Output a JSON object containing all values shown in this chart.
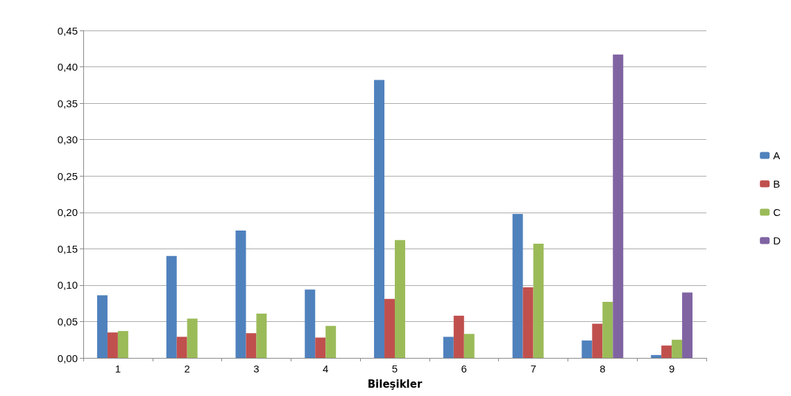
{
  "chart_data": {
    "type": "bar",
    "xlabel": "Bileşikler",
    "categories": [
      "1",
      "2",
      "3",
      "4",
      "5",
      "6",
      "7",
      "8",
      "9"
    ],
    "series": [
      {
        "name": "A",
        "color": "#4f81bd",
        "values": [
          0.086,
          0.14,
          0.175,
          0.094,
          0.382,
          0.029,
          0.198,
          0.024,
          0.004
        ]
      },
      {
        "name": "B",
        "color": "#c0504d",
        "values": [
          0.035,
          0.029,
          0.034,
          0.028,
          0.081,
          0.058,
          0.097,
          0.047,
          0.017
        ]
      },
      {
        "name": "C",
        "color": "#9bbb59",
        "values": [
          0.037,
          0.054,
          0.061,
          0.044,
          0.162,
          0.033,
          0.157,
          0.077,
          0.025
        ]
      },
      {
        "name": "D",
        "color": "#8064a2",
        "values": [
          null,
          null,
          null,
          null,
          null,
          null,
          null,
          0.417,
          0.09
        ]
      }
    ],
    "ylim": [
      0,
      0.45
    ],
    "yticks": [
      {
        "value": 0,
        "label": "0,00"
      },
      {
        "value": 0.05,
        "label": "0,05"
      },
      {
        "value": 0.1,
        "label": "0,10"
      },
      {
        "value": 0.15,
        "label": "0,15"
      },
      {
        "value": 0.2,
        "label": "0,20"
      },
      {
        "value": 0.25,
        "label": "0,25"
      },
      {
        "value": 0.3,
        "label": "0,30"
      },
      {
        "value": 0.35,
        "label": "0,35"
      },
      {
        "value": 0.4,
        "label": "0,40"
      },
      {
        "value": 0.45,
        "label": "0,45"
      }
    ],
    "grid": "y",
    "legend": "right"
  }
}
